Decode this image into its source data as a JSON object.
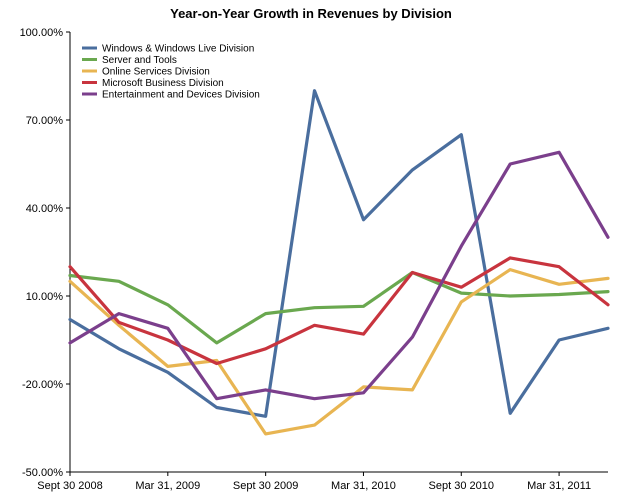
{
  "chart_data": {
    "type": "line",
    "title": "Year-on-Year Growth in Revenues by Division",
    "xlabel": "",
    "ylabel": "",
    "ylim": [
      -50,
      100
    ],
    "y_ticks": [
      100,
      70,
      40,
      10,
      -20,
      -50
    ],
    "y_tick_labels": [
      "100.00%",
      "70.00%",
      "40.00%",
      "10.00%",
      "-20.00%",
      "-50.00%"
    ],
    "x_tick_labels": [
      "Sept 30 2008",
      "Mar 31, 2009",
      "Sept 30 2009",
      "Mar 31, 2010",
      "Sept 30 2010",
      "Mar 31, 2011"
    ],
    "x_tick_positions": [
      0,
      2,
      4,
      6,
      8,
      10
    ],
    "x": [
      0,
      1,
      2,
      3,
      4,
      5,
      6,
      7,
      8,
      9,
      10,
      11
    ],
    "grid": false,
    "legend_position": "top-left",
    "series": [
      {
        "name": "Windows & Windows Live Division",
        "color": "#4a6e9e",
        "values": [
          2,
          -8,
          -16,
          -28,
          -31,
          80,
          36,
          53,
          65,
          -30,
          -5,
          -1
        ]
      },
      {
        "name": "Server and Tools",
        "color": "#6aa84f",
        "values": [
          17,
          15,
          7,
          -6,
          4,
          6,
          6.5,
          18,
          11,
          10,
          10.5,
          11.5
        ]
      },
      {
        "name": "Online Services Division",
        "color": "#e8b552",
        "values": [
          15,
          0,
          -14,
          -12,
          -37,
          -34,
          -21,
          -22,
          8,
          19,
          14,
          16
        ]
      },
      {
        "name": "Microsoft Business Division",
        "color": "#c8343e",
        "values": [
          20,
          1,
          -5,
          -13,
          -8,
          0,
          -3,
          18,
          13,
          23,
          20,
          7
        ]
      },
      {
        "name": "Entertainment and Devices Division",
        "color": "#7b3f8c",
        "values": [
          -6,
          4,
          -1,
          -25,
          -22,
          -25,
          -23,
          -4,
          27,
          55,
          59,
          30
        ]
      }
    ]
  }
}
